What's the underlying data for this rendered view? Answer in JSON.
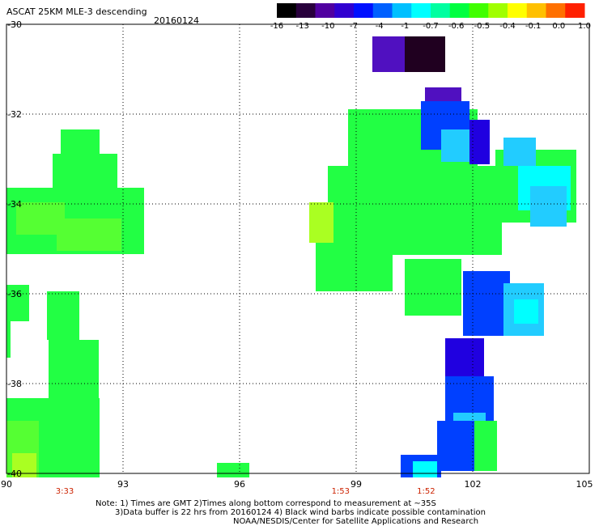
{
  "header": {
    "title": "ASCAT 25KM MLE-3 descending",
    "date": "20160124"
  },
  "colorbar": {
    "labels": [
      "-16",
      "-13",
      "-10",
      "-7",
      "-4",
      "-1",
      "-0.7",
      "-0.6",
      "-0.5",
      "-0.4",
      "-0.1",
      "0.0",
      "1.0"
    ],
    "colors": [
      "#000000",
      "#28003c",
      "#5000a0",
      "#3000d0",
      "#0010ff",
      "#0060ff",
      "#00c0ff",
      "#00ffff",
      "#00ffa0",
      "#00ff40",
      "#40ff00",
      "#a0ff00",
      "#ffff00",
      "#ffc000",
      "#ff7000",
      "#ff2000"
    ]
  },
  "axes": {
    "lat_labels": [
      "-30",
      "-32",
      "-34",
      "-36",
      "-38",
      "-40"
    ],
    "lon_labels": [
      "90",
      "93",
      "96",
      "99",
      "102",
      "105"
    ],
    "lat_range": [
      -40,
      -30
    ],
    "lon_range": [
      90,
      105
    ]
  },
  "time_labels": [
    {
      "lon": 91.5,
      "text": "3:33"
    },
    {
      "lon": 98.6,
      "text": "1:53"
    },
    {
      "lon": 100.8,
      "text": "1:52"
    }
  ],
  "notes": [
    "Note: 1) Times are GMT 2)Times along bottom correspond to measurement at ~35S",
    "3)Data buffer is 22 hrs from 20160124 4) Black wind barbs indicate possible contamination",
    "NOAA/NESDIS/Center for Satellite Applications and Research"
  ],
  "map": {
    "palette": {
      "green": "#22ff44",
      "lightgreen": "#55ff33",
      "yellowgreen": "#aaff22",
      "cyan": "#00ffff",
      "lightblue": "#22ccff",
      "blue": "#0040ff",
      "darkblue": "#2000e0",
      "purple": "#5010c0",
      "darkpurple": "#200020"
    }
  }
}
